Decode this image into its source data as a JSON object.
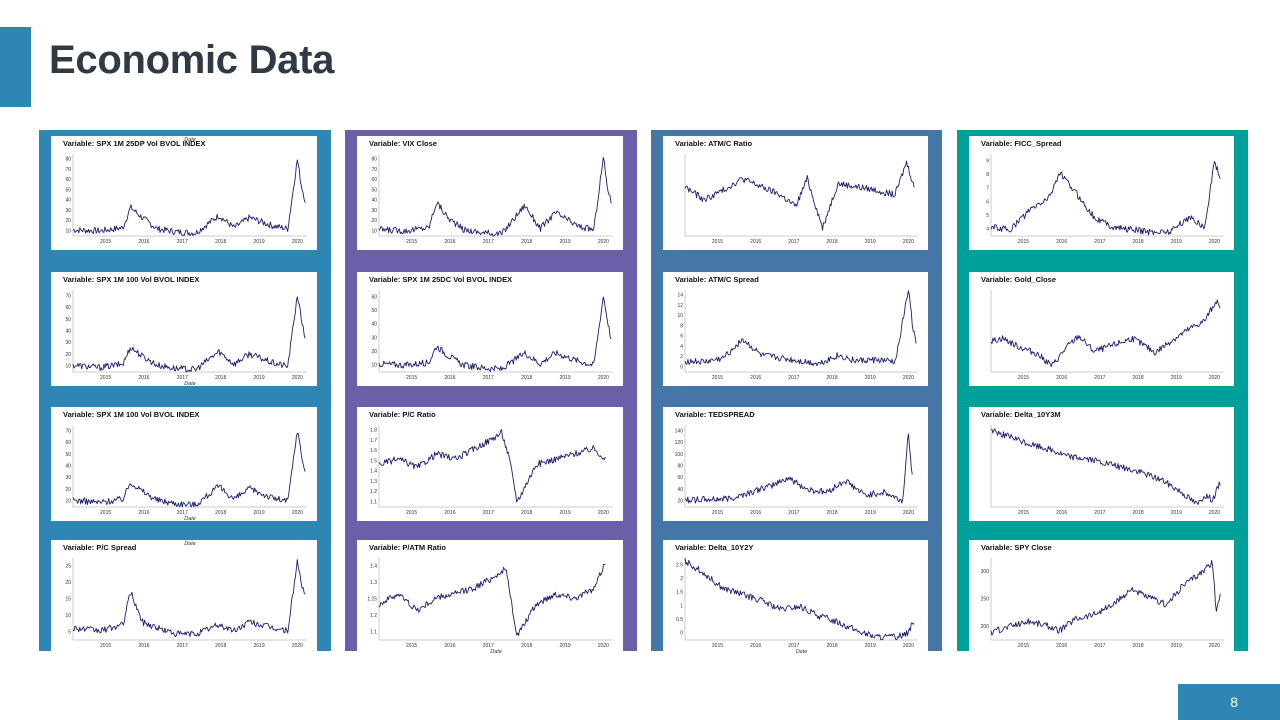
{
  "page": {
    "title": "Economic Data",
    "page_number": "8"
  },
  "colors": {
    "accent_bar": "#2e86b4",
    "column_1": "#2e86b4",
    "column_2": "#6a5fa8",
    "column_3": "#4476a8",
    "column_4": "#00a09a",
    "page_number_box": "#2e86b4",
    "series_line": "#1c1f6e"
  },
  "columns": [
    {
      "charts": [
        {
          "title": "Variable: SPX 1M 25DP Vol BVOL INDEX",
          "xlabel": "Date",
          "xlabel_position": "top",
          "x_ticks": [
            "2015",
            "2016",
            "2017",
            "2018",
            "2019",
            "2020"
          ],
          "y_ticks": [
            "10",
            "20",
            "30",
            "40",
            "50",
            "60",
            "70",
            "80"
          ]
        },
        {
          "title": "Variable: SPX 1M 100 Vol BVOL INDEX",
          "xlabel": "Date",
          "xlabel_position": "bottom",
          "x_ticks": [
            "2015",
            "2016",
            "2017",
            "2018",
            "2019",
            "2020"
          ],
          "y_ticks": [
            "10",
            "20",
            "30",
            "40",
            "50",
            "60",
            "70"
          ]
        },
        {
          "title": "Variable: SPX 1M 100 Vol BVOL INDEX",
          "xlabel": "Date",
          "xlabel_position": "bottom",
          "x_ticks": [
            "2015",
            "2016",
            "2017",
            "2018",
            "2019",
            "2020"
          ],
          "y_ticks": [
            "10",
            "20",
            "30",
            "40",
            "50",
            "60",
            "70"
          ]
        },
        {
          "title": "Variable: P/C Spread",
          "xlabel": "Date",
          "xlabel_position": "top",
          "x_ticks": [
            "2015",
            "2016",
            "2017",
            "2018",
            "2019",
            "2020"
          ],
          "y_ticks": [
            "5",
            "10",
            "15",
            "20",
            "25"
          ]
        }
      ]
    },
    {
      "charts": [
        {
          "title": "Variable: VIX Close",
          "xlabel": "",
          "xlabel_position": "bottom",
          "x_ticks": [
            "2015",
            "2016",
            "2017",
            "2018",
            "2019",
            "2020"
          ],
          "y_ticks": [
            "10",
            "20",
            "30",
            "40",
            "50",
            "60",
            "70",
            "80"
          ]
        },
        {
          "title": "Variable: SPX 1M 25DC Vol BVOL INDEX",
          "xlabel": "",
          "xlabel_position": "bottom",
          "x_ticks": [
            "2015",
            "2016",
            "2017",
            "2018",
            "2019",
            "2020"
          ],
          "y_ticks": [
            "10",
            "20",
            "30",
            "40",
            "50",
            "60"
          ]
        },
        {
          "title": "Variable: P/C Ratio",
          "xlabel": "",
          "xlabel_position": "bottom",
          "x_ticks": [
            "2015",
            "2016",
            "2017",
            "2018",
            "2019",
            "2020"
          ],
          "y_ticks": [
            "1.1",
            "1.2",
            "1.3",
            "1.4",
            "1.5",
            "1.6",
            "1.7",
            "1.8"
          ]
        },
        {
          "title": "Variable: P/ATM Ratio",
          "xlabel": "Date",
          "xlabel_position": "bottom",
          "x_ticks": [
            "2015",
            "2016",
            "2017",
            "2018",
            "2019",
            "2020"
          ],
          "y_ticks": [
            "1.1",
            "1.2",
            "1.25",
            "1.3",
            "1.4"
          ]
        }
      ]
    },
    {
      "charts": [
        {
          "title": "Variable: ATM/C Ratio",
          "xlabel": "",
          "xlabel_position": "bottom",
          "x_ticks": [
            "2015",
            "2016",
            "2017",
            "2018",
            "2019",
            "2020"
          ],
          "y_ticks": []
        },
        {
          "title": "Variable: ATM/C Spread",
          "xlabel": "",
          "xlabel_position": "bottom",
          "x_ticks": [
            "2015",
            "2016",
            "2017",
            "2018",
            "2019",
            "2020"
          ],
          "y_ticks": [
            "0",
            "2",
            "4",
            "6",
            "8",
            "10",
            "12",
            "14"
          ]
        },
        {
          "title": "Variable: TEDSPREAD",
          "xlabel": "",
          "xlabel_position": "bottom",
          "x_ticks": [
            "2015",
            "2016",
            "2017",
            "2018",
            "2019",
            "2020"
          ],
          "y_ticks": [
            "20",
            "40",
            "60",
            "80",
            "100",
            "120",
            "140"
          ]
        },
        {
          "title": "Variable: Delta_10Y2Y",
          "xlabel": "Date",
          "xlabel_position": "bottom",
          "x_ticks": [
            "2015",
            "2016",
            "2017",
            "2018",
            "2019",
            "2020"
          ],
          "y_ticks": [
            "0",
            "0.5",
            "1",
            "1.5",
            "2",
            "2.5"
          ]
        }
      ]
    },
    {
      "charts": [
        {
          "title": "Variable: FICC_Spread",
          "xlabel": "",
          "xlabel_position": "bottom",
          "x_ticks": [
            "2015",
            "2016",
            "2017",
            "2018",
            "2019",
            "2020"
          ],
          "y_ticks": [
            "4",
            "5",
            "6",
            "7",
            "8",
            "9"
          ]
        },
        {
          "title": "Variable: Gold_Close",
          "xlabel": "",
          "xlabel_position": "bottom",
          "x_ticks": [
            "2015",
            "2016",
            "2017",
            "2018",
            "2019",
            "2020"
          ],
          "y_ticks": []
        },
        {
          "title": "Variable: Delta_10Y3M",
          "xlabel": "",
          "xlabel_position": "bottom",
          "x_ticks": [
            "2015",
            "2016",
            "2017",
            "2018",
            "2019",
            "2020"
          ],
          "y_ticks": []
        },
        {
          "title": "Variable: SPY Close",
          "xlabel": "",
          "xlabel_position": "bottom",
          "x_ticks": [
            "2015",
            "2016",
            "2017",
            "2018",
            "2019",
            "2020"
          ],
          "y_ticks": [
            "200",
            "250",
            "300"
          ]
        }
      ]
    }
  ],
  "chart_data": [
    {
      "type": "line",
      "title": "Variable: SPX 1M 25DP Vol BVOL INDEX",
      "xlabel": "Date",
      "x": [
        2014.3,
        2015.0,
        2015.6,
        2015.8,
        2016.1,
        2016.5,
        2017.0,
        2017.5,
        2018.1,
        2018.5,
        2018.9,
        2019.5,
        2019.9,
        2020.15,
        2020.25,
        2020.35
      ],
      "values": [
        16,
        15,
        18,
        38,
        28,
        17,
        14,
        13,
        30,
        18,
        28,
        20,
        17,
        85,
        60,
        45
      ],
      "ylim": [
        10,
        90
      ]
    },
    {
      "type": "line",
      "title": "Variable: SPX 1M 100 Vol BVOL INDEX",
      "xlabel": "Date",
      "x": [
        2014.3,
        2015.0,
        2015.6,
        2015.8,
        2016.1,
        2016.5,
        2017.0,
        2017.5,
        2018.1,
        2018.5,
        2018.9,
        2019.5,
        2019.9,
        2020.15,
        2020.25,
        2020.35
      ],
      "values": [
        14,
        12,
        15,
        30,
        22,
        14,
        11,
        10,
        26,
        15,
        24,
        16,
        13,
        76,
        55,
        38
      ],
      "ylim": [
        8,
        80
      ]
    },
    {
      "type": "line",
      "title": "Variable: SPX 1M 100 Vol BVOL INDEX",
      "xlabel": "Date",
      "x": [
        2014.3,
        2015.0,
        2015.6,
        2015.8,
        2016.1,
        2016.5,
        2017.0,
        2017.5,
        2018.1,
        2018.5,
        2018.9,
        2019.5,
        2019.9,
        2020.15,
        2020.25,
        2020.35
      ],
      "values": [
        14,
        12,
        15,
        30,
        22,
        14,
        11,
        10,
        26,
        15,
        24,
        16,
        13,
        76,
        55,
        38
      ],
      "ylim": [
        8,
        80
      ]
    },
    {
      "type": "line",
      "title": "Variable: P/C Spread",
      "xlabel": "Date",
      "x": [
        2014.3,
        2015.0,
        2015.6,
        2015.8,
        2016.1,
        2016.5,
        2017.0,
        2017.5,
        2018.1,
        2018.5,
        2018.9,
        2019.5,
        2019.9,
        2020.15,
        2020.25,
        2020.35
      ],
      "values": [
        5,
        4,
        6,
        17,
        7,
        5,
        3,
        3,
        6,
        4,
        7,
        5,
        4,
        27,
        20,
        15
      ],
      "ylim": [
        1,
        28
      ]
    },
    {
      "type": "line",
      "title": "Variable: VIX Close",
      "x": [
        2014.3,
        2015.0,
        2015.6,
        2015.8,
        2016.1,
        2016.5,
        2017.0,
        2017.5,
        2018.1,
        2018.5,
        2018.9,
        2019.5,
        2019.9,
        2020.15,
        2020.25,
        2020.35
      ],
      "values": [
        14,
        13,
        16,
        40,
        25,
        14,
        11,
        10,
        37,
        15,
        30,
        17,
        14,
        82,
        55,
        40
      ],
      "ylim": [
        8,
        85
      ]
    },
    {
      "type": "line",
      "title": "Variable: SPX 1M 25DC Vol BVOL INDEX",
      "x": [
        2014.3,
        2015.0,
        2015.6,
        2015.8,
        2016.1,
        2016.5,
        2017.0,
        2017.5,
        2018.1,
        2018.5,
        2018.9,
        2019.5,
        2019.9,
        2020.15,
        2020.25,
        2020.35
      ],
      "values": [
        12,
        11,
        13,
        25,
        18,
        11,
        9,
        8,
        20,
        12,
        20,
        14,
        11,
        62,
        45,
        30
      ],
      "ylim": [
        6,
        66
      ]
    },
    {
      "type": "line",
      "title": "Variable: P/C Ratio",
      "x": [
        2014.3,
        2014.8,
        2015.3,
        2015.8,
        2016.3,
        2016.8,
        2017.2,
        2017.5,
        2017.7,
        2017.9,
        2018.4,
        2018.9,
        2019.4,
        2019.9,
        2020.2
      ],
      "values": [
        1.45,
        1.5,
        1.42,
        1.55,
        1.5,
        1.6,
        1.68,
        1.75,
        1.5,
        1.1,
        1.45,
        1.5,
        1.55,
        1.6,
        1.5
      ],
      "ylim": [
        1.05,
        1.82
      ]
    },
    {
      "type": "line",
      "title": "Variable: P/ATM Ratio",
      "xlabel": "Date",
      "x": [
        2014.3,
        2014.8,
        2015.3,
        2015.8,
        2016.3,
        2016.8,
        2017.3,
        2017.6,
        2017.9,
        2018.4,
        2018.9,
        2019.4,
        2019.9,
        2020.2
      ],
      "values": [
        1.25,
        1.3,
        1.22,
        1.28,
        1.3,
        1.33,
        1.38,
        1.42,
        1.1,
        1.25,
        1.3,
        1.28,
        1.32,
        1.45
      ],
      "ylim": [
        1.08,
        1.47
      ]
    },
    {
      "type": "line",
      "title": "Variable: ATM/C Ratio",
      "x": [
        2014.3,
        2014.8,
        2015.3,
        2015.8,
        2016.3,
        2016.8,
        2017.2,
        2017.5,
        2017.9,
        2018.3,
        2018.8,
        2019.3,
        2019.8,
        2020.1,
        2020.3
      ],
      "values": [
        1.3,
        1.22,
        1.28,
        1.35,
        1.3,
        1.25,
        1.18,
        1.35,
        1.05,
        1.32,
        1.3,
        1.28,
        1.25,
        1.45,
        1.3
      ],
      "ylim": [
        1.0,
        1.5
      ]
    },
    {
      "type": "line",
      "title": "Variable: ATM/C Spread",
      "x": [
        2014.3,
        2014.8,
        2015.3,
        2015.8,
        2016.3,
        2016.8,
        2017.3,
        2017.8,
        2018.3,
        2018.8,
        2019.3,
        2019.8,
        2020.15,
        2020.25,
        2020.35
      ],
      "values": [
        2,
        1.8,
        2.5,
        6,
        3,
        2.5,
        2,
        1.5,
        3,
        2,
        2.2,
        1.8,
        15,
        9,
        5
      ],
      "ylim": [
        0,
        15
      ]
    },
    {
      "type": "line",
      "title": "Variable: TEDSPREAD",
      "x": [
        2014.3,
        2015.0,
        2015.5,
        2016.0,
        2016.5,
        2017.0,
        2017.5,
        2018.0,
        2018.5,
        2019.0,
        2019.5,
        2020.0,
        2020.15,
        2020.25
      ],
      "values": [
        22,
        23,
        25,
        35,
        45,
        60,
        40,
        35,
        55,
        30,
        35,
        20,
        140,
        60
      ],
      "ylim": [
        10,
        150
      ]
    },
    {
      "type": "line",
      "title": "Variable: Delta_10Y2Y",
      "xlabel": "Date",
      "x": [
        2014.3,
        2014.8,
        2015.3,
        2015.8,
        2016.3,
        2016.8,
        2017.3,
        2017.8,
        2018.3,
        2018.8,
        2019.3,
        2019.8,
        2020.1,
        2020.3
      ],
      "values": [
        2.6,
        2.2,
        1.7,
        1.5,
        1.3,
        1.0,
        1.1,
        0.8,
        0.6,
        0.3,
        0.1,
        0.1,
        0.2,
        0.6
      ],
      "ylim": [
        0,
        2.7
      ]
    },
    {
      "type": "line",
      "title": "Variable: FICC_Spread",
      "x": [
        2014.3,
        2014.8,
        2015.3,
        2015.8,
        2016.1,
        2016.5,
        2017.0,
        2017.5,
        2018.0,
        2018.5,
        2019.0,
        2019.5,
        2019.9,
        2020.15,
        2020.3
      ],
      "values": [
        4.2,
        4.0,
        5.5,
        6.5,
        8.5,
        7.0,
        5.0,
        4.2,
        4.0,
        3.8,
        3.9,
        5.0,
        4.2,
        9.5,
        8.0
      ],
      "ylim": [
        3.5,
        10
      ]
    },
    {
      "type": "line",
      "title": "Variable: Gold_Close",
      "x": [
        2014.3,
        2014.6,
        2015.0,
        2015.5,
        2015.9,
        2016.3,
        2016.6,
        2017.0,
        2017.5,
        2018.0,
        2018.6,
        2019.0,
        2019.5,
        2019.9,
        2020.2,
        2020.3
      ],
      "values": [
        1300,
        1330,
        1250,
        1180,
        1060,
        1250,
        1350,
        1200,
        1260,
        1330,
        1190,
        1300,
        1420,
        1500,
        1700,
        1600
      ],
      "ylim": [
        1000,
        1800
      ]
    },
    {
      "type": "line",
      "title": "Variable: Delta_10Y3M",
      "x": [
        2014.3,
        2014.8,
        2015.3,
        2015.8,
        2016.3,
        2016.8,
        2017.3,
        2017.8,
        2018.3,
        2018.8,
        2019.3,
        2019.7,
        2019.9,
        2020.1,
        2020.3
      ],
      "values": [
        2.8,
        2.5,
        2.2,
        2.0,
        1.7,
        1.6,
        1.4,
        1.2,
        1.0,
        0.7,
        0.2,
        -0.3,
        0.1,
        -0.1,
        0.6
      ],
      "ylim": [
        -0.4,
        3.0
      ]
    },
    {
      "type": "line",
      "title": "Variable: SPY Close",
      "x": [
        2014.3,
        2014.8,
        2015.3,
        2015.8,
        2016.1,
        2016.5,
        2017.0,
        2017.5,
        2018.0,
        2018.3,
        2018.9,
        2019.3,
        2019.9,
        2020.1,
        2020.2,
        2020.3
      ],
      "values": [
        185,
        200,
        210,
        200,
        190,
        215,
        225,
        245,
        280,
        265,
        245,
        285,
        320,
        335,
        225,
        270
      ],
      "ylim": [
        170,
        345
      ]
    }
  ]
}
